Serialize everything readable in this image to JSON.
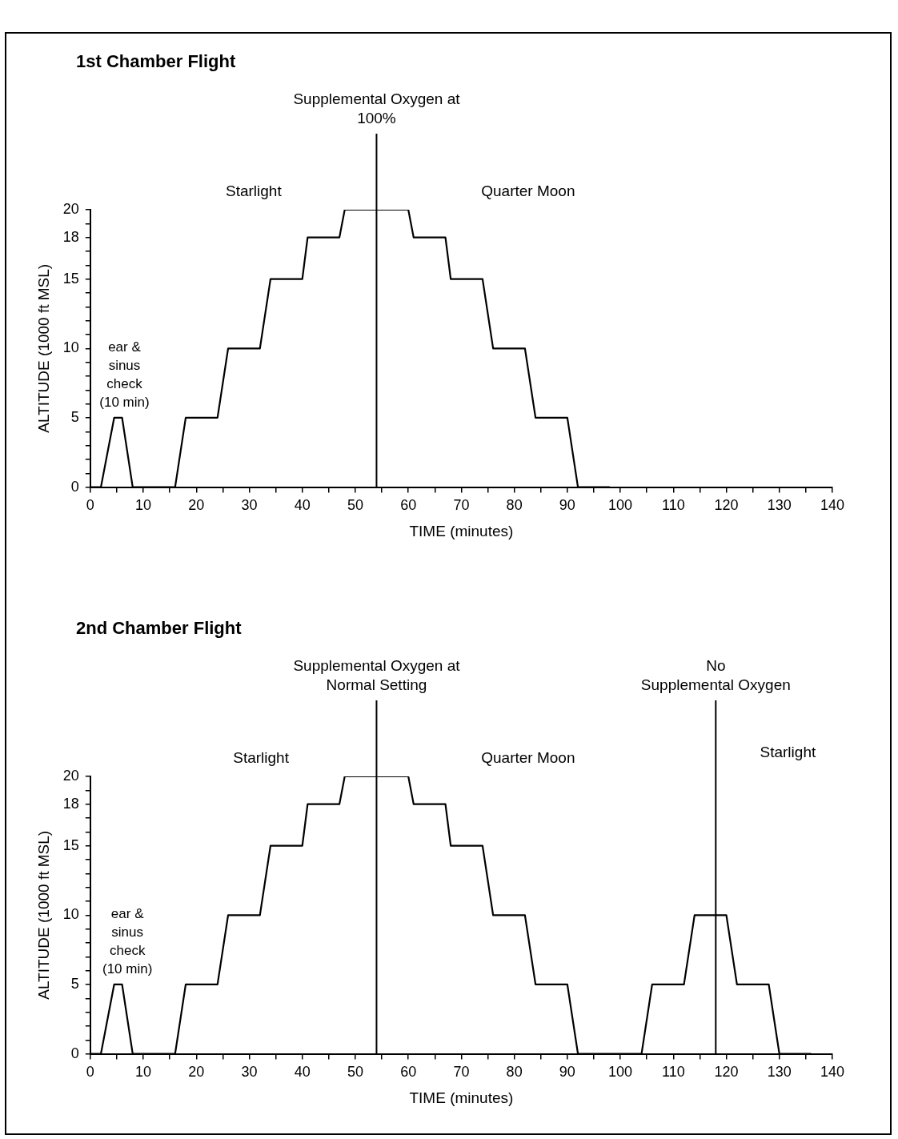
{
  "chart_data": [
    {
      "type": "line",
      "title": "1st Chamber Flight",
      "xlabel": "TIME (minutes)",
      "ylabel": "ALTITUDE (1000 ft MSL)",
      "xlim": [
        0,
        140
      ],
      "ylim": [
        0,
        20
      ],
      "xticks": [
        0,
        {
          "value": 5,
          "label": null
        },
        10,
        {
          "value": 15,
          "label": null
        },
        20,
        {
          "value": 25,
          "label": null
        },
        30,
        {
          "value": 35,
          "label": null
        },
        40,
        {
          "value": 45,
          "label": null
        },
        50,
        {
          "value": 55,
          "label": null
        },
        60,
        {
          "value": 65,
          "label": null
        },
        70,
        {
          "value": 75,
          "label": null
        },
        80,
        {
          "value": 85,
          "label": null
        },
        90,
        {
          "value": 95,
          "label": null
        },
        100,
        {
          "value": 105,
          "label": null
        },
        110,
        {
          "value": 115,
          "label": null
        },
        120,
        {
          "value": 125,
          "label": null
        },
        130,
        {
          "value": 135,
          "label": null
        },
        140
      ],
      "yticks": [
        0,
        {
          "value": 1,
          "label": null
        },
        {
          "value": 2,
          "label": null
        },
        {
          "value": 3,
          "label": null
        },
        {
          "value": 4,
          "label": null
        },
        5,
        {
          "value": 6,
          "label": null
        },
        {
          "value": 7,
          "label": null
        },
        {
          "value": 8,
          "label": null
        },
        {
          "value": 9,
          "label": null
        },
        10,
        {
          "value": 11,
          "label": null
        },
        {
          "value": 12,
          "label": null
        },
        {
          "value": 13,
          "label": null
        },
        {
          "value": 14,
          "label": null
        },
        15,
        {
          "value": 16,
          "label": null
        },
        {
          "value": 17,
          "label": null
        },
        18,
        {
          "value": 19,
          "label": null
        },
        20
      ],
      "series": [
        {
          "color": "#000000",
          "x": [
            0,
            2,
            4.5,
            6,
            8,
            16,
            18,
            24,
            26,
            32,
            34,
            40,
            41,
            47,
            48,
            60,
            61,
            67,
            68,
            74,
            76,
            82,
            84,
            90,
            92,
            98
          ],
          "values": [
            0,
            0,
            5,
            5,
            0,
            0,
            5,
            5,
            10,
            10,
            15,
            15,
            18,
            18,
            20,
            20,
            18,
            18,
            15,
            15,
            10,
            10,
            5,
            5,
            0,
            0
          ]
        }
      ],
      "ref_lines": [
        {
          "axis": "x",
          "value": 54,
          "label": "Supplemental Oxygen at\n100%"
        }
      ],
      "annotations": [
        "Starlight",
        "Quarter Moon",
        "ear &\nsinus\ncheck\n(10 min)"
      ]
    },
    {
      "type": "line",
      "title": "2nd Chamber Flight",
      "xlabel": "TIME (minutes)",
      "ylabel": "ALTITUDE (1000 ft MSL)",
      "xlim": [
        0,
        140
      ],
      "ylim": [
        0,
        20
      ],
      "xticks": [
        0,
        {
          "value": 5,
          "label": null
        },
        10,
        {
          "value": 15,
          "label": null
        },
        20,
        {
          "value": 25,
          "label": null
        },
        30,
        {
          "value": 35,
          "label": null
        },
        40,
        {
          "value": 45,
          "label": null
        },
        50,
        {
          "value": 55,
          "label": null
        },
        60,
        {
          "value": 65,
          "label": null
        },
        70,
        {
          "value": 75,
          "label": null
        },
        80,
        {
          "value": 85,
          "label": null
        },
        90,
        {
          "value": 95,
          "label": null
        },
        100,
        {
          "value": 105,
          "label": null
        },
        110,
        {
          "value": 115,
          "label": null
        },
        120,
        {
          "value": 125,
          "label": null
        },
        130,
        {
          "value": 135,
          "label": null
        },
        140
      ],
      "yticks": [
        0,
        {
          "value": 1,
          "label": null
        },
        {
          "value": 2,
          "label": null
        },
        {
          "value": 3,
          "label": null
        },
        {
          "value": 4,
          "label": null
        },
        5,
        {
          "value": 6,
          "label": null
        },
        {
          "value": 7,
          "label": null
        },
        {
          "value": 8,
          "label": null
        },
        {
          "value": 9,
          "label": null
        },
        10,
        {
          "value": 11,
          "label": null
        },
        {
          "value": 12,
          "label": null
        },
        {
          "value": 13,
          "label": null
        },
        {
          "value": 14,
          "label": null
        },
        15,
        {
          "value": 16,
          "label": null
        },
        {
          "value": 17,
          "label": null
        },
        18,
        {
          "value": 19,
          "label": null
        },
        20
      ],
      "series": [
        {
          "color": "#000000",
          "x": [
            0,
            2,
            4.5,
            6,
            8,
            16,
            18,
            24,
            26,
            32,
            34,
            40,
            41,
            47,
            48,
            60,
            61,
            67,
            68,
            74,
            76,
            82,
            84,
            90,
            92,
            104,
            106,
            112,
            114,
            120,
            122,
            128,
            130,
            136
          ],
          "values": [
            0,
            0,
            5,
            5,
            0,
            0,
            5,
            5,
            10,
            10,
            15,
            15,
            18,
            18,
            20,
            20,
            18,
            18,
            15,
            15,
            10,
            10,
            5,
            5,
            0,
            0,
            5,
            5,
            10,
            10,
            5,
            5,
            0,
            0
          ]
        }
      ],
      "ref_lines": [
        {
          "axis": "x",
          "value": 54,
          "label": "Supplemental Oxygen at\nNormal Setting"
        },
        {
          "axis": "x",
          "value": 118,
          "label": "No\nSupplemental Oxygen"
        }
      ],
      "annotations": [
        "Starlight",
        "Quarter Moon",
        "Starlight",
        "ear &\nsinus\ncheck\n(10 min)"
      ]
    }
  ]
}
